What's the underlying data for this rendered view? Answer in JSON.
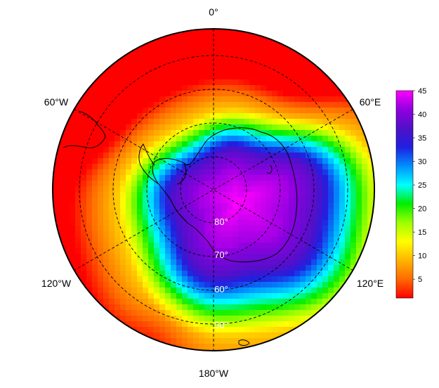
{
  "map": {
    "projection": "south-polar-stereographic",
    "longitude_labels": {
      "top": "0°",
      "upper_left": "60°W",
      "upper_right": "60°E",
      "lower_left": "120°W",
      "lower_right": "120°E",
      "bottom": "180°W"
    },
    "latitude_labels": [
      "80°",
      "70°",
      "60°",
      "50°"
    ],
    "gridlines": "dashed",
    "coastlines": true
  },
  "colorbar": {
    "ticks": [
      "45",
      "40",
      "35",
      "30",
      "25",
      "20",
      "15",
      "10",
      "5"
    ],
    "range": [
      1,
      45
    ],
    "colors": [
      "#ff0000",
      "#ff6a00",
      "#ffb400",
      "#ffff00",
      "#9cff00",
      "#00ee00",
      "#00ffff",
      "#0090ff",
      "#2020e0",
      "#5010c8",
      "#9000e0",
      "#ff00ff"
    ]
  },
  "field": {
    "description_values": {
      "pole_region_max": 45,
      "outer_rim_min": 1
    }
  }
}
